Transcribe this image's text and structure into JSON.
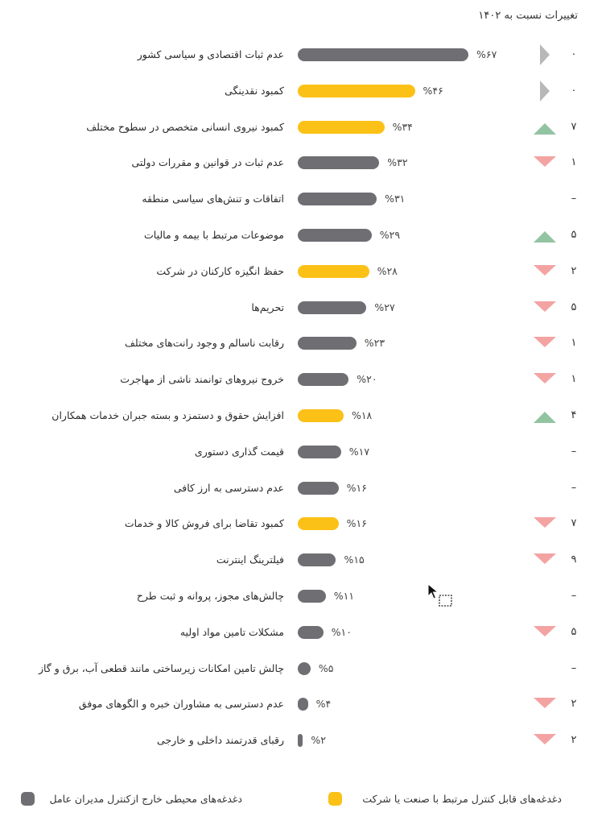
{
  "header": {
    "title": "تغییرات نسبت به ۱۴۰۲"
  },
  "colors": {
    "controllable": "#fbc117",
    "environmental": "#6e6e73",
    "up": "#93c4a2",
    "down": "#f4a3a3",
    "neutral": "#b8b8b8"
  },
  "legend": {
    "controllable": "دغدغه‌های قابل کنترل مرتبط با صنعت یا شرکت",
    "environmental": "دغدغه‌های محیطی خارج ازکنترل مدیران عامل"
  },
  "chart_data": {
    "type": "bar",
    "orientation": "horizontal",
    "title": "",
    "xlim": [
      0,
      67
    ],
    "categories": [
      "عدم ثبات اقتصادی و سیاسی کشور",
      "کمبود نقدینگی",
      "کمبود نیروی انسانی متخصص در سطوح مختلف",
      "عدم ثبات در قوانین و مقررات دولتی",
      "اتفاقات و تنش‌های سیاسی منطقه",
      "موضوعات مرتبط با بیمه و مالیات",
      "حفظ انگیزه کارکنان در شرکت",
      "تحریم‌ها",
      "رقابت ناسالم و وجود رانت‌های مختلف",
      "خروج نیروهای توانمند ناشی از مهاجرت",
      "افزایش حقوق و دستمزد و بسته جبران خدمات همکاران",
      "قیمت گذاری دستوری",
      "عدم دسترسی به ارز کافی",
      "کمبود تقاضا برای فروش کالا و خدمات",
      "فیلترینگ اینترنت",
      "چالش‌های مجوز، پروانه و ثبت طرح",
      "مشکلات تامین مواد اولیه",
      "چالش تامین امکانات زیرساختی مانند قطعی آب، برق و گاز",
      "عدم دسترسی به مشاوران خبره و الگوهای موفق",
      "رقبای قدرتمند داخلی و خارجی"
    ],
    "values": [
      67,
      46,
      34,
      32,
      31,
      29,
      28,
      27,
      23,
      20,
      18,
      17,
      16,
      16,
      15,
      11,
      10,
      5,
      4,
      2
    ],
    "value_labels": [
      "%۶۷",
      "%۴۶",
      "%۳۴",
      "%۳۲",
      "%۳۱",
      "%۲۹",
      "%۲۸",
      "%۲۷",
      "%۲۳",
      "%۲۰",
      "%۱۸",
      "%۱۷",
      "%۱۶",
      "%۱۶",
      "%۱۵",
      "%۱۱",
      "%۱۰",
      "%۵",
      "%۴",
      "%۲"
    ],
    "group": [
      "environmental",
      "controllable",
      "controllable",
      "environmental",
      "environmental",
      "environmental",
      "controllable",
      "environmental",
      "environmental",
      "environmental",
      "controllable",
      "environmental",
      "environmental",
      "controllable",
      "environmental",
      "environmental",
      "environmental",
      "environmental",
      "environmental",
      "environmental"
    ],
    "trend": [
      "same",
      "same",
      "up",
      "down",
      "none",
      "up",
      "down",
      "down",
      "down",
      "down",
      "up",
      "none",
      "none",
      "down",
      "down",
      "none",
      "down",
      "none",
      "down",
      "down"
    ],
    "change_labels": [
      "۰",
      "۰",
      "۷",
      "۱",
      "–",
      "۵",
      "۲",
      "۵",
      "۱",
      "۱",
      "۴",
      "–",
      "–",
      "۷",
      "۹",
      "–",
      "۵",
      "–",
      "۲",
      "۲"
    ]
  }
}
